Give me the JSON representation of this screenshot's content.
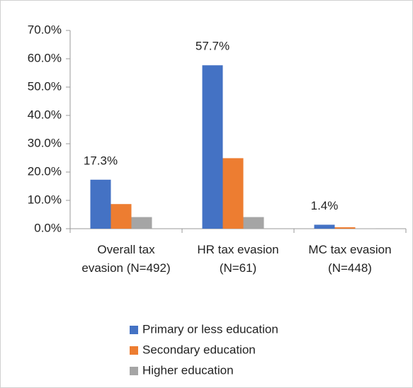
{
  "chart_data": {
    "type": "bar",
    "categories": [
      "Overall tax evasion (N=492)",
      "HR tax evasion (N=61)",
      "MC tax evasion (N=448)"
    ],
    "series": [
      {
        "name": "Primary or less education",
        "color": "#4472c4",
        "values": [
          17.3,
          57.7,
          1.4
        ],
        "value_labels": [
          "17.3%",
          "57.7%",
          "1.4%"
        ]
      },
      {
        "name": "Secondary education",
        "color": "#ed7d31",
        "values": [
          8.7,
          24.9,
          0.5
        ]
      },
      {
        "name": "Higher education",
        "color": "#a5a5a5",
        "values": [
          4.1,
          4.1,
          0.1
        ]
      }
    ],
    "ylim": [
      0,
      70
    ],
    "yticks": [
      {
        "value": 0,
        "label": "0.0%"
      },
      {
        "value": 10,
        "label": "10.0%"
      },
      {
        "value": 20,
        "label": "20.0%"
      },
      {
        "value": 30,
        "label": "30.0%"
      },
      {
        "value": 40,
        "label": "40.0%"
      },
      {
        "value": 50,
        "label": "50.0%"
      },
      {
        "value": 60,
        "label": "60.0%"
      },
      {
        "value": 70,
        "label": "70.0%"
      }
    ],
    "legend": "bottom"
  }
}
